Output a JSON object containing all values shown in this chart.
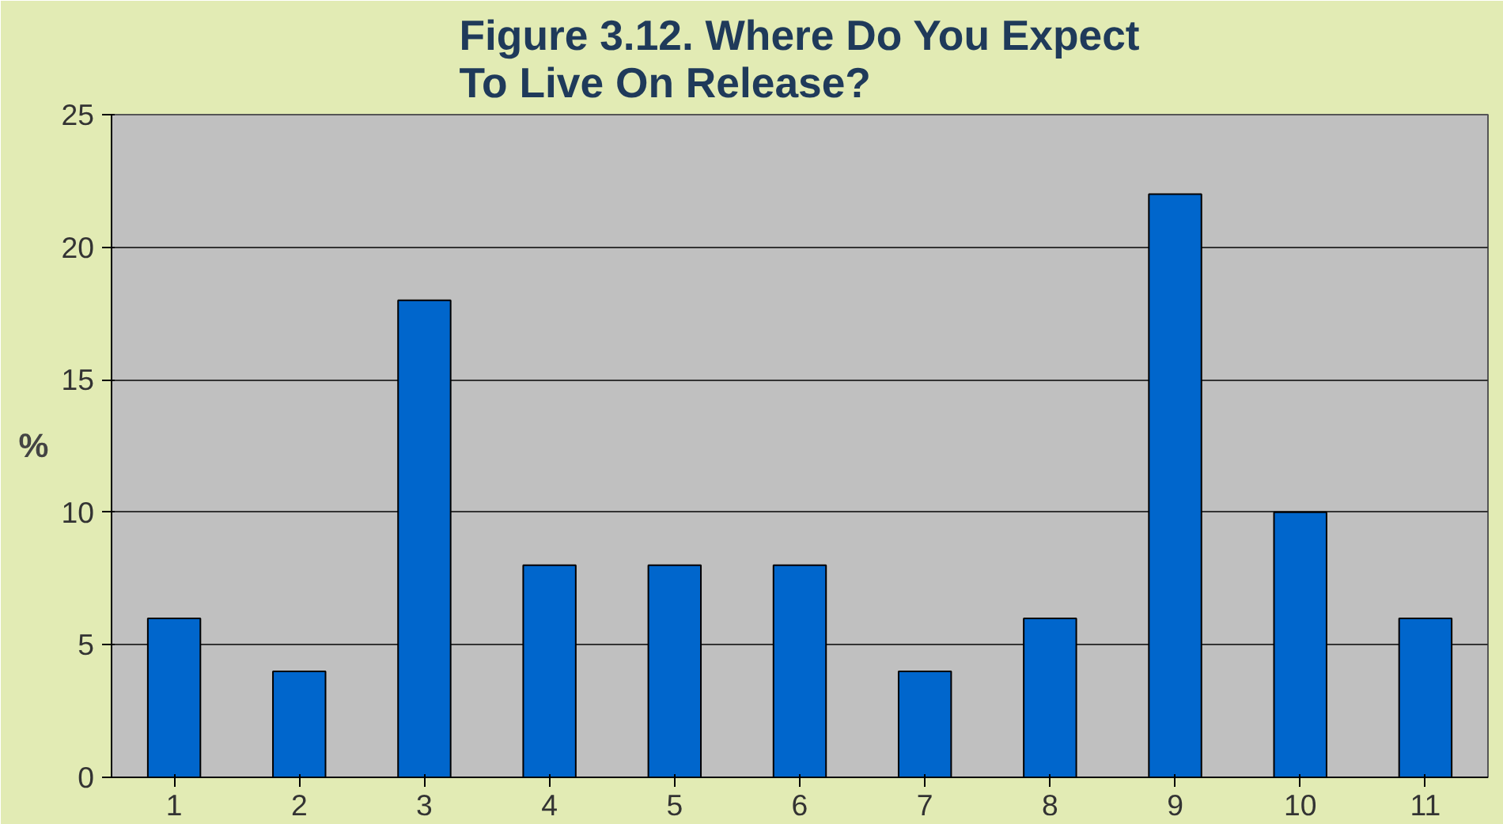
{
  "chart_data": {
    "type": "bar",
    "title": "Figure 3.12. Where Do You Expect To Live On Release?",
    "ylabel": "%",
    "categories": [
      "1",
      "2",
      "3",
      "4",
      "5",
      "6",
      "7",
      "8",
      "9",
      "10",
      "11"
    ],
    "values": [
      6,
      4,
      18,
      8,
      8,
      8,
      4,
      6,
      22,
      10,
      6
    ],
    "color": "#0066cc",
    "ylim": [
      0,
      25
    ],
    "yticks": [
      0,
      5,
      10,
      15,
      20,
      25
    ],
    "grid": "y"
  }
}
